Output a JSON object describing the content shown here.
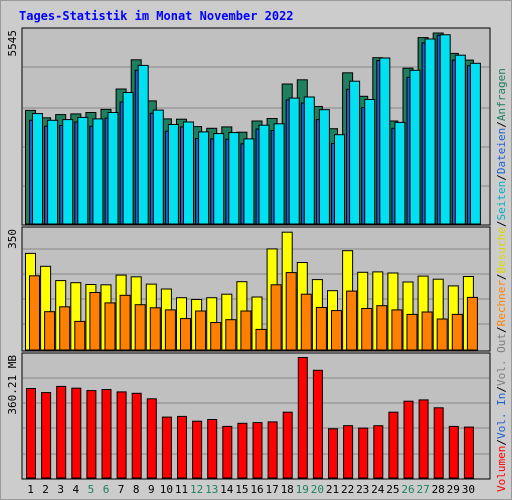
{
  "title": "Tages-Statistik im Monat November 2022",
  "chart_data": [
    {
      "type": "bar",
      "panel": "top",
      "ylabel": "5545",
      "ylim": [
        0,
        5545
      ],
      "categories": [
        "1",
        "2",
        "3",
        "4",
        "5",
        "6",
        "7",
        "8",
        "9",
        "10",
        "11",
        "12",
        "13",
        "14",
        "15",
        "16",
        "17",
        "18",
        "19",
        "20",
        "21",
        "22",
        "23",
        "24",
        "25",
        "26",
        "27",
        "28",
        "29",
        "30"
      ],
      "weekend_days": [
        "5",
        "6",
        "12",
        "13",
        "19",
        "20",
        "26",
        "27"
      ],
      "series": [
        {
          "name": "Anfragen",
          "color": "#1f7f5f",
          "values": [
            3230,
            3020,
            3110,
            3130,
            3170,
            3260,
            3840,
            4670,
            3500,
            2990,
            2980,
            2770,
            2720,
            2760,
            2610,
            2930,
            3000,
            3980,
            4100,
            3340,
            2710,
            4300,
            3630,
            4730,
            2930,
            4430,
            5300,
            5430,
            4850,
            4660
          ]
        },
        {
          "name": "Dateien",
          "color": "#2060d0",
          "values": [
            2950,
            2780,
            2800,
            2900,
            2780,
            3010,
            3470,
            4370,
            3150,
            2640,
            2760,
            2430,
            2420,
            2410,
            2280,
            2700,
            2660,
            3530,
            3440,
            2970,
            2290,
            3830,
            3310,
            4650,
            2720,
            4170,
            5150,
            5370,
            4660,
            4500
          ]
        },
        {
          "name": "Seiten",
          "color": "#00e0f0",
          "values": [
            3140,
            2950,
            2970,
            3030,
            2990,
            3170,
            3740,
            4510,
            3240,
            2830,
            2900,
            2620,
            2570,
            2600,
            2420,
            2810,
            2850,
            3580,
            3610,
            3250,
            2540,
            4060,
            3540,
            4720,
            2890,
            4370,
            5260,
            5380,
            4800,
            4570
          ]
        }
      ]
    },
    {
      "type": "bar",
      "panel": "middle",
      "ylabel": "350",
      "ylim": [
        0,
        350
      ],
      "categories": [
        "1",
        "2",
        "3",
        "4",
        "5",
        "6",
        "7",
        "8",
        "9",
        "10",
        "11",
        "12",
        "13",
        "14",
        "15",
        "16",
        "17",
        "18",
        "19",
        "20",
        "21",
        "22",
        "23",
        "24",
        "25",
        "26",
        "27",
        "28",
        "29",
        "30"
      ],
      "series": [
        {
          "name": "Besuche",
          "color": "#ffff00",
          "values": [
            277,
            240,
            199,
            193,
            188,
            187,
            215,
            210,
            189,
            175,
            150,
            145,
            150,
            160,
            196,
            152,
            290,
            338,
            251,
            202,
            170,
            285,
            223,
            224,
            221,
            195,
            212,
            203,
            184,
            211
          ]
        },
        {
          "name": "Rechner",
          "color": "#ff8000",
          "values": [
            213,
            110,
            124,
            82,
            165,
            135,
            157,
            130,
            121,
            115,
            90,
            112,
            79,
            87,
            112,
            59,
            187,
            222,
            160,
            122,
            113,
            169,
            119,
            127,
            115,
            102,
            109,
            89,
            102,
            151
          ]
        }
      ]
    },
    {
      "type": "bar",
      "panel": "bottom",
      "ylabel": "360.21 MB",
      "ylim": [
        0,
        360.21
      ],
      "categories": [
        "1",
        "2",
        "3",
        "4",
        "5",
        "6",
        "7",
        "8",
        "9",
        "10",
        "11",
        "12",
        "13",
        "14",
        "15",
        "16",
        "17",
        "18",
        "19",
        "20",
        "21",
        "22",
        "23",
        "24",
        "25",
        "26",
        "27",
        "28",
        "29",
        "30"
      ],
      "series": [
        {
          "name": "Vol. In",
          "color": "#2060d0",
          "values": [
            0,
            0,
            0,
            0,
            0,
            0,
            0,
            0,
            0,
            0,
            0,
            0,
            0,
            0,
            0,
            0,
            0,
            0,
            0,
            0,
            0,
            0,
            0,
            0,
            0,
            0,
            0,
            0,
            0,
            0
          ]
        },
        {
          "name": "Vol. Out",
          "color": "#808080",
          "values": [
            0,
            0,
            0,
            0,
            0,
            0,
            0,
            0,
            0,
            0,
            0,
            0,
            0,
            0,
            0,
            0,
            0,
            0,
            0,
            0,
            0,
            0,
            0,
            0,
            0,
            0,
            0,
            0,
            0,
            0
          ]
        },
        {
          "name": "Volumen",
          "color": "#ff0000",
          "values": [
            260,
            248,
            266,
            261,
            254,
            257,
            250,
            246,
            230,
            177,
            179,
            165,
            170,
            150,
            159,
            161,
            163,
            191,
            350,
            313,
            143,
            152,
            145,
            152,
            191,
            223,
            227,
            204,
            150,
            148
          ]
        }
      ]
    }
  ],
  "legend": {
    "anfragen": "Anfragen",
    "dateien": "Dateien",
    "seiten": "Seiten",
    "besuche": "Besuche",
    "rechner": "Rechner",
    "vol_out": "Vol. Out",
    "vol_in": "Vol. In",
    "volumen": "Volumen",
    "sep": "/",
    "colors": {
      "anfragen": "#1f7f5f",
      "dateien": "#2060d0",
      "seiten": "#00b0c8",
      "besuche": "#d8d800",
      "rechner": "#ff8000",
      "vol_out": "#808080",
      "vol_in": "#2060d0",
      "volumen": "#ff0000",
      "sep": "#000000"
    }
  },
  "colors": {
    "background": "#cccccc",
    "plot_background": "#c0c0c0",
    "grid": "#888888",
    "weekday_tick": "#000000",
    "weekend_tick": "#208060",
    "title": "#0000ff"
  }
}
